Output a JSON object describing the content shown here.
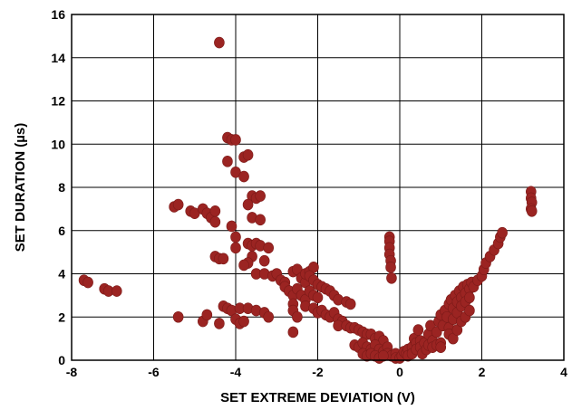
{
  "chart_data": {
    "type": "scatter",
    "title": "",
    "xlabel": "SET EXTREME DEVIATION (V)",
    "ylabel": "SET DURATION (µs)",
    "xlim": [
      -8,
      4
    ],
    "ylim": [
      0,
      16
    ],
    "xticks": [
      "-8",
      "-6",
      "-4",
      "-2",
      "0",
      "2",
      "4"
    ],
    "yticks": [
      "0",
      "2",
      "4",
      "6",
      "8",
      "10",
      "12",
      "14",
      "16"
    ],
    "grid": true,
    "legend": "none",
    "marker_color": "#9b2422",
    "series": [
      {
        "points": [
          [
            -7.7,
            3.7
          ],
          [
            -7.6,
            3.6
          ],
          [
            -7.2,
            3.3
          ],
          [
            -7.1,
            3.2
          ],
          [
            -6.9,
            3.2
          ],
          [
            -5.5,
            7.1
          ],
          [
            -5.4,
            7.2
          ],
          [
            -5.1,
            6.9
          ],
          [
            -5.0,
            6.8
          ],
          [
            -4.8,
            7.0
          ],
          [
            -4.7,
            6.8
          ],
          [
            -4.6,
            6.6
          ],
          [
            -4.5,
            6.9
          ],
          [
            -4.5,
            6.4
          ],
          [
            -5.4,
            2.0
          ],
          [
            -4.8,
            1.8
          ],
          [
            -4.7,
            2.1
          ],
          [
            -4.4,
            1.7
          ],
          [
            -4.4,
            14.7
          ],
          [
            -4.2,
            10.3
          ],
          [
            -4.1,
            10.2
          ],
          [
            -4.0,
            10.2
          ],
          [
            -4.2,
            9.2
          ],
          [
            -4.0,
            8.7
          ],
          [
            -3.8,
            9.4
          ],
          [
            -3.7,
            9.5
          ],
          [
            -3.8,
            8.5
          ],
          [
            -3.6,
            7.6
          ],
          [
            -3.7,
            7.2
          ],
          [
            -3.5,
            7.5
          ],
          [
            -3.4,
            7.6
          ],
          [
            -3.6,
            6.6
          ],
          [
            -3.4,
            6.5
          ],
          [
            -4.5,
            4.8
          ],
          [
            -4.4,
            4.7
          ],
          [
            -4.3,
            4.7
          ],
          [
            -4.1,
            6.2
          ],
          [
            -4.0,
            5.7
          ],
          [
            -4.0,
            5.2
          ],
          [
            -3.7,
            5.4
          ],
          [
            -3.6,
            5.3
          ],
          [
            -3.5,
            5.4
          ],
          [
            -3.4,
            5.3
          ],
          [
            -3.2,
            5.2
          ],
          [
            -3.6,
            4.8
          ],
          [
            -3.7,
            4.5
          ],
          [
            -3.3,
            4.6
          ],
          [
            -3.8,
            4.4
          ],
          [
            -3.5,
            4.0
          ],
          [
            -3.3,
            4.0
          ],
          [
            -3.1,
            3.9
          ],
          [
            -3.0,
            4.0
          ],
          [
            -4.3,
            2.5
          ],
          [
            -4.2,
            2.4
          ],
          [
            -4.1,
            2.3
          ],
          [
            -3.9,
            2.4
          ],
          [
            -3.7,
            2.4
          ],
          [
            -3.5,
            2.3
          ],
          [
            -3.3,
            2.2
          ],
          [
            -3.2,
            2.0
          ],
          [
            -4.0,
            1.9
          ],
          [
            -3.9,
            1.7
          ],
          [
            -3.8,
            1.8
          ],
          [
            -2.9,
            3.7
          ],
          [
            -2.8,
            3.6
          ],
          [
            -2.8,
            3.4
          ],
          [
            -2.7,
            3.2
          ],
          [
            -2.6,
            3.0
          ],
          [
            -2.5,
            3.3
          ],
          [
            -2.6,
            2.6
          ],
          [
            -2.6,
            2.3
          ],
          [
            -2.5,
            2.0
          ],
          [
            -2.6,
            1.3
          ],
          [
            -2.6,
            4.1
          ],
          [
            -2.5,
            4.2
          ],
          [
            -2.4,
            3.8
          ],
          [
            -2.3,
            3.6
          ],
          [
            -2.3,
            4.0
          ],
          [
            -2.2,
            4.1
          ],
          [
            -2.1,
            4.3
          ],
          [
            -2.2,
            3.9
          ],
          [
            -2.1,
            3.7
          ],
          [
            -2.0,
            3.5
          ],
          [
            -2.4,
            3.0
          ],
          [
            -2.3,
            2.8
          ],
          [
            -2.2,
            3.2
          ],
          [
            -2.1,
            3.0
          ],
          [
            -2.0,
            2.9
          ],
          [
            -1.9,
            3.4
          ],
          [
            -1.8,
            3.3
          ],
          [
            -1.7,
            3.2
          ],
          [
            -1.6,
            3.0
          ],
          [
            -1.5,
            2.8
          ],
          [
            -1.3,
            2.7
          ],
          [
            -1.2,
            2.6
          ],
          [
            -2.3,
            2.5
          ],
          [
            -2.1,
            2.4
          ],
          [
            -2.0,
            2.2
          ],
          [
            -1.9,
            2.3
          ],
          [
            -1.8,
            2.1
          ],
          [
            -1.7,
            2.0
          ],
          [
            -1.6,
            2.2
          ],
          [
            -1.5,
            1.9
          ],
          [
            -1.4,
            1.8
          ],
          [
            -1.5,
            1.6
          ],
          [
            -1.3,
            1.6
          ],
          [
            -1.2,
            1.5
          ],
          [
            -1.1,
            1.5
          ],
          [
            -1.0,
            1.4
          ],
          [
            -0.9,
            1.3
          ],
          [
            -0.8,
            1.2
          ],
          [
            -0.7,
            1.2
          ],
          [
            -0.6,
            1.0
          ],
          [
            -0.5,
            1.1
          ],
          [
            -0.4,
            0.9
          ],
          [
            -1.1,
            0.7
          ],
          [
            -1.0,
            0.6
          ],
          [
            -0.9,
            0.8
          ],
          [
            -0.8,
            0.6
          ],
          [
            -0.7,
            0.5
          ],
          [
            -0.6,
            0.7
          ],
          [
            -0.5,
            0.5
          ],
          [
            -0.4,
            0.4
          ],
          [
            -0.3,
            0.6
          ],
          [
            -0.3,
            0.3
          ],
          [
            -0.2,
            0.2
          ],
          [
            -0.1,
            0.3
          ],
          [
            -0.1,
            0.1
          ],
          [
            -0.9,
            0.3
          ],
          [
            -0.8,
            0.2
          ],
          [
            -0.7,
            0.3
          ],
          [
            -0.6,
            0.2
          ],
          [
            -0.5,
            0.1
          ],
          [
            -0.4,
            0.2
          ],
          [
            -0.25,
            5.7
          ],
          [
            -0.25,
            5.5
          ],
          [
            -0.25,
            5.2
          ],
          [
            -0.25,
            4.9
          ],
          [
            -0.22,
            4.6
          ],
          [
            -0.22,
            4.3
          ],
          [
            -0.2,
            3.8
          ],
          [
            0.0,
            0.1
          ],
          [
            0.05,
            0.2
          ],
          [
            0.1,
            0.4
          ],
          [
            0.15,
            0.3
          ],
          [
            0.2,
            0.5
          ],
          [
            0.2,
            0.2
          ],
          [
            0.3,
            0.6
          ],
          [
            0.3,
            0.3
          ],
          [
            0.35,
            1.0
          ],
          [
            0.4,
            0.8
          ],
          [
            0.4,
            0.5
          ],
          [
            0.45,
            1.4
          ],
          [
            0.5,
            0.9
          ],
          [
            0.5,
            0.6
          ],
          [
            0.55,
            0.3
          ],
          [
            0.6,
            0.8
          ],
          [
            0.65,
            0.5
          ],
          [
            0.7,
            1.2
          ],
          [
            0.7,
            0.7
          ],
          [
            0.75,
            1.6
          ],
          [
            0.8,
            0.9
          ],
          [
            0.8,
            0.6
          ],
          [
            0.9,
            0.7
          ],
          [
            1.0,
            0.8
          ],
          [
            1.0,
            0.6
          ],
          [
            0.9,
            1.3
          ],
          [
            0.95,
            1.8
          ],
          [
            1.0,
            2.1
          ],
          [
            1.05,
            1.6
          ],
          [
            1.1,
            2.3
          ],
          [
            1.15,
            2.0
          ],
          [
            1.2,
            2.6
          ],
          [
            1.2,
            1.5
          ],
          [
            1.25,
            2.8
          ],
          [
            1.3,
            2.4
          ],
          [
            1.3,
            1.9
          ],
          [
            1.35,
            3.0
          ],
          [
            1.4,
            2.7
          ],
          [
            1.4,
            2.2
          ],
          [
            1.45,
            3.2
          ],
          [
            1.5,
            2.9
          ],
          [
            1.5,
            2.5
          ],
          [
            1.55,
            3.4
          ],
          [
            1.6,
            3.1
          ],
          [
            1.6,
            2.7
          ],
          [
            1.65,
            3.5
          ],
          [
            1.7,
            3.3
          ],
          [
            1.7,
            2.9
          ],
          [
            1.75,
            3.6
          ],
          [
            1.8,
            3.4
          ],
          [
            1.2,
            1.2
          ],
          [
            1.3,
            1.0
          ],
          [
            1.4,
            1.4
          ],
          [
            1.5,
            1.8
          ],
          [
            1.6,
            2.0
          ],
          [
            1.7,
            2.3
          ],
          [
            1.9,
            3.7
          ],
          [
            2.0,
            3.9
          ],
          [
            2.05,
            4.2
          ],
          [
            2.1,
            4.5
          ],
          [
            2.2,
            4.8
          ],
          [
            2.3,
            5.1
          ],
          [
            2.4,
            5.4
          ],
          [
            2.45,
            5.7
          ],
          [
            2.5,
            5.9
          ],
          [
            3.2,
            7.8
          ],
          [
            3.2,
            7.5
          ],
          [
            3.22,
            7.3
          ],
          [
            3.2,
            7.0
          ],
          [
            3.22,
            6.9
          ]
        ]
      }
    ]
  }
}
